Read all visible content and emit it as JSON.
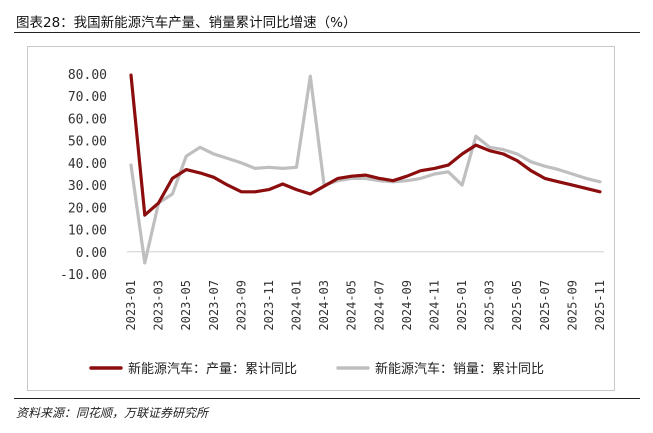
{
  "figure": {
    "title": "图表28：我国新能源汽车产量、销量累计同比增速（%）",
    "source": "资料来源：同花顺，万联证券研究所"
  },
  "chart_data": {
    "type": "line",
    "title": "",
    "xlabel": "",
    "ylabel": "",
    "ylim": [
      -10,
      80
    ],
    "y_ticks": [
      "80.00",
      "70.00",
      "60.00",
      "50.00",
      "40.00",
      "30.00",
      "20.00",
      "10.00",
      "0.00",
      "-10.00"
    ],
    "y_tick_values": [
      80,
      70,
      60,
      50,
      40,
      30,
      20,
      10,
      0,
      -10
    ],
    "x": [
      "2023-01",
      "2023-02",
      "2023-03",
      "2023-04",
      "2023-05",
      "2023-06",
      "2023-07",
      "2023-08",
      "2023-09",
      "2023-10",
      "2023-11",
      "2023-12",
      "2024-01",
      "2024-02",
      "2024-03",
      "2024-04",
      "2024-05",
      "2024-06",
      "2024-07",
      "2024-08",
      "2024-09",
      "2024-10",
      "2024-11",
      "2024-12",
      "2025-01",
      "2025-02",
      "2025-03",
      "2025-04",
      "2025-05",
      "2025-06",
      "2025-07",
      "2025-08",
      "2025-09",
      "2025-10",
      "2025-11"
    ],
    "x_tick_labels": [
      "2023-01",
      "2023-03",
      "2023-05",
      "2023-07",
      "2023-09",
      "2023-11",
      "2024-01",
      "2024-03",
      "2024-05",
      "2024-07",
      "2024-09",
      "2024-11",
      "2025-01",
      "2025-03",
      "2025-05",
      "2025-07",
      "2025-09",
      "2025-11"
    ],
    "grid": false,
    "legend_position": "bottom",
    "series": [
      {
        "name": "新能源汽车：产量：累计同比",
        "color": "#8b0d0d",
        "values": [
          79.5,
          16.5,
          22,
          33,
          37,
          35.5,
          33.5,
          30,
          27,
          27,
          28,
          30.5,
          28,
          26,
          29.5,
          33,
          34,
          34.5,
          33,
          32,
          34,
          36.5,
          37.5,
          39,
          44,
          48,
          45.5,
          44,
          41,
          36.5,
          33,
          31.5,
          30,
          28.5,
          27
        ]
      },
      {
        "name": "新能源汽车：销量：累计同比",
        "color": "#bfbfbf",
        "values": [
          39,
          -5,
          22,
          26,
          43,
          47,
          44,
          42,
          40,
          37.5,
          38,
          37.5,
          38,
          79,
          30,
          32,
          33,
          33,
          32,
          31.5,
          32,
          33,
          35,
          36,
          30,
          52,
          47,
          46,
          44,
          40.5,
          38.5,
          37,
          35,
          33,
          31.5
        ]
      }
    ]
  }
}
